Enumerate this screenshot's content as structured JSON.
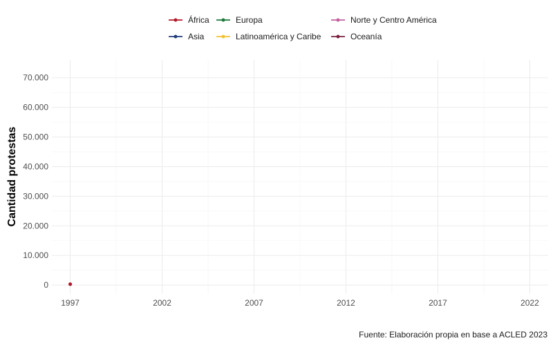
{
  "chart_data": {
    "type": "line",
    "title": "",
    "xlabel": "",
    "ylabel": "Cantidad protestas",
    "caption": "Fuente: Elaboración propia en base a ACLED 2023",
    "x_ticks": [
      "1997",
      "2002",
      "2007",
      "2012",
      "2017",
      "2022"
    ],
    "y_ticks": [
      "0",
      "10.000",
      "20.000",
      "30.000",
      "40.000",
      "50.000",
      "60.000",
      "70.000"
    ],
    "x_tick_values": [
      1997,
      2002,
      2007,
      2012,
      2017,
      2022
    ],
    "y_tick_values": [
      0,
      10000,
      20000,
      30000,
      40000,
      50000,
      60000,
      70000
    ],
    "xlim": [
      1996,
      2023
    ],
    "ylim": [
      -3000,
      76000
    ],
    "grid": true,
    "legend_position": "top",
    "series": [
      {
        "name": "África",
        "color": "#b2182b",
        "points": [
          [
            1997,
            300
          ]
        ]
      },
      {
        "name": "Asia",
        "color": "#1f3a7a",
        "points": []
      },
      {
        "name": "Europa",
        "color": "#1a7a3a",
        "points": []
      },
      {
        "name": "Latinoamérica y Caribe",
        "color": "#f2c12e",
        "points": []
      },
      {
        "name": "Norte y Centro América",
        "color": "#c25fa0",
        "points": []
      },
      {
        "name": "Oceanía",
        "color": "#7a1f3d",
        "points": []
      }
    ]
  }
}
